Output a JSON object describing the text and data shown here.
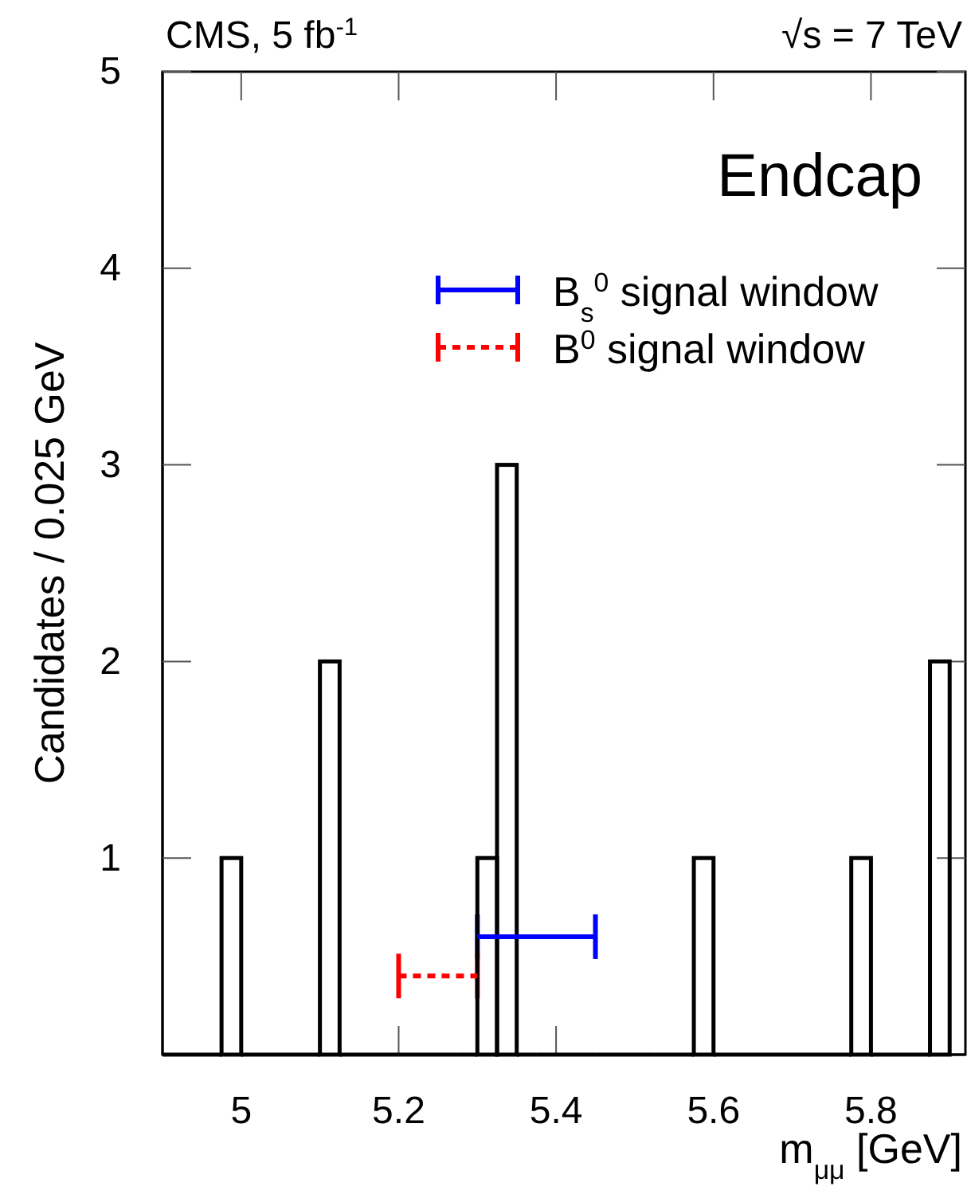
{
  "chart_data": {
    "type": "histogram",
    "xlabel": "m$_{μμ}$ [GeV]",
    "ylabel": "Candidates / 0.025 GeV",
    "annotations": [
      "CMS, 5 fb$^{-1}$",
      "√s = 7 TeV",
      "Endcap"
    ],
    "bins": [
      4.9,
      4.925,
      4.95,
      4.975,
      5.0,
      5.025,
      5.05,
      5.075,
      5.1,
      5.125,
      5.15,
      5.175,
      5.2,
      5.225,
      5.25,
      5.275,
      5.3,
      5.325,
      5.35,
      5.375,
      5.4,
      5.425,
      5.45,
      5.475,
      5.5,
      5.525,
      5.55,
      5.575,
      5.6,
      5.625,
      5.65,
      5.675,
      5.7,
      5.725,
      5.75,
      5.775,
      5.8,
      5.825,
      5.85,
      5.875,
      5.9
    ],
    "values": [
      0,
      0,
      0,
      1,
      0,
      0,
      0,
      0,
      2,
      0,
      0,
      0,
      0,
      0,
      0,
      0,
      1,
      3,
      0,
      0,
      0,
      0,
      0,
      0,
      0,
      0,
      0,
      1,
      0,
      0,
      0,
      0,
      0,
      0,
      0,
      1,
      0,
      0,
      0,
      2
    ],
    "color": "#000000",
    "series": [
      {
        "type": "line",
        "name": "B$_{s}$$^{0}$ signal window",
        "color": "#0000ff",
        "line_style": "solid",
        "x": [
          5.3,
          5.45
        ],
        "values": [
          0.6,
          0.6
        ]
      },
      {
        "type": "line",
        "name": "B$^{0}$ signal window",
        "color": "#ff0000",
        "line_style": "dashed",
        "x": [
          5.2,
          5.3
        ],
        "values": [
          0.4,
          0.4
        ]
      }
    ],
    "xlim": [
      4.9,
      5.92
    ],
    "xticks": [
      5,
      5.2,
      5.4,
      5.6,
      5.8
    ],
    "ylim": [
      0,
      5
    ],
    "yticks": [
      1,
      2,
      3,
      4,
      5
    ],
    "legend": "top right"
  }
}
